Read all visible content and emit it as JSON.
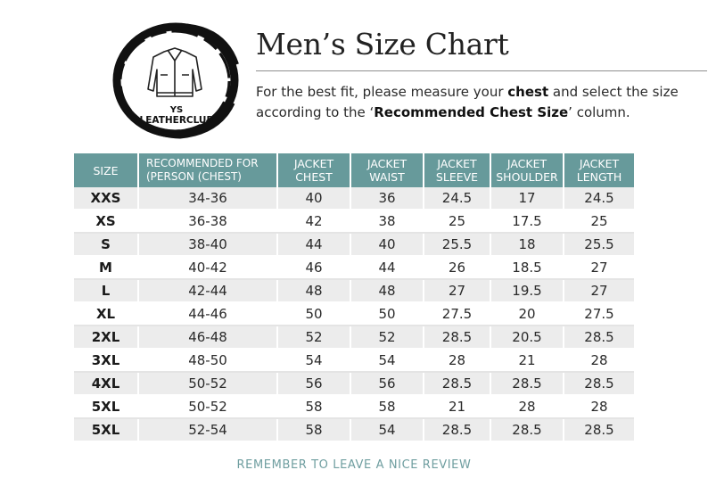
{
  "logo": {
    "icon": "jacket-icon",
    "line1": "YS",
    "line2": "LEATHERCLUB"
  },
  "title": "Men’s Size Chart",
  "intro": {
    "part1": "For the best fit, please measure your ",
    "bold1": "chest",
    "part2": " and select the size according to the ‘",
    "bold2": "Recommended Chest Size",
    "part3": "’ column."
  },
  "table": {
    "headers": [
      [
        "SIZE"
      ],
      [
        "RECOMMENDED FOR",
        "(PERSON (CHEST)"
      ],
      [
        "JACKET",
        "CHEST"
      ],
      [
        "JACKET",
        "WAIST"
      ],
      [
        "JACKET",
        "SLEEVE"
      ],
      [
        "JACKET",
        "SHOULDER"
      ],
      [
        "JACKET",
        "LENGTH"
      ]
    ],
    "rows": [
      [
        "XXS",
        "34-36",
        "40",
        "36",
        "24.5",
        "17",
        "24.5"
      ],
      [
        "XS",
        "36-38",
        "42",
        "38",
        "25",
        "17.5",
        "25"
      ],
      [
        "S",
        "38-40",
        "44",
        "40",
        "25.5",
        "18",
        "25.5"
      ],
      [
        "M",
        "40-42",
        "46",
        "44",
        "26",
        "18.5",
        "27"
      ],
      [
        "L",
        "42-44",
        "48",
        "48",
        "27",
        "19.5",
        "27"
      ],
      [
        "XL",
        "44-46",
        "50",
        "50",
        "27.5",
        "20",
        "27.5"
      ],
      [
        "2XL",
        "46-48",
        "52",
        "52",
        "28.5",
        "20.5",
        "28.5"
      ],
      [
        "3XL",
        "48-50",
        "54",
        "54",
        "28",
        "21",
        "28"
      ],
      [
        "4XL",
        "50-52",
        "56",
        "56",
        "28.5",
        "28.5",
        "28.5"
      ],
      [
        "5XL",
        "50-52",
        "58",
        "58",
        "21",
        "28",
        "28"
      ],
      [
        "5XL",
        "52-54",
        "58",
        "54",
        "28.5",
        "28.5",
        "28.5"
      ]
    ]
  },
  "footer": "REMEMBER TO LEAVE A NICE REVIEW",
  "colors": {
    "header_bg": "#679a9b",
    "stripe": "#ececec",
    "footer_text": "#6f9ea0"
  }
}
